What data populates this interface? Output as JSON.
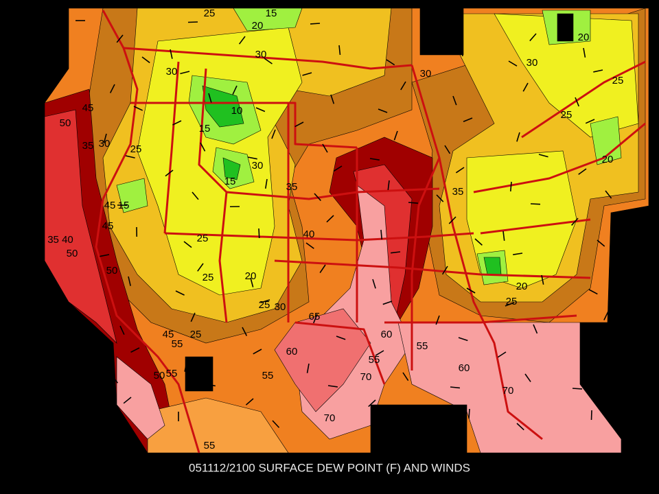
{
  "caption": "051112/2100 SURFACE DEW POINT (F) AND WINDS",
  "contour_labels": [
    "25",
    "15",
    "20",
    "30",
    "30",
    "30",
    "30",
    "20",
    "25",
    "25",
    "50",
    "45",
    "35",
    "30",
    "25",
    "15",
    "10",
    "30",
    "15",
    "35",
    "40",
    "35",
    "20",
    "45",
    "15",
    "45",
    "35 40",
    "50",
    "50",
    "25",
    "25",
    "20",
    "25",
    "30",
    "20",
    "25",
    "25",
    "55",
    "45",
    "50",
    "55",
    "55",
    "60",
    "55",
    "60",
    "55",
    "60",
    "70",
    "70",
    "70",
    "55",
    "65"
  ]
}
